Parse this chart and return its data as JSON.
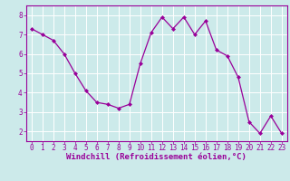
{
  "x": [
    0,
    1,
    2,
    3,
    4,
    5,
    6,
    7,
    8,
    9,
    10,
    11,
    12,
    13,
    14,
    15,
    16,
    17,
    18,
    19,
    20,
    21,
    22,
    23
  ],
  "y": [
    7.3,
    7.0,
    6.7,
    6.0,
    5.0,
    4.1,
    3.5,
    3.4,
    3.2,
    3.4,
    5.5,
    7.1,
    7.9,
    7.3,
    7.9,
    7.0,
    7.7,
    6.2,
    5.9,
    4.8,
    2.5,
    1.9,
    2.8,
    1.9
  ],
  "line_color": "#990099",
  "marker": "D",
  "markersize": 2.0,
  "linewidth": 0.9,
  "xlabel": "Windchill (Refroidissement éolien,°C)",
  "xlabel_fontsize": 6.5,
  "xtick_labels": [
    "0",
    "1",
    "2",
    "3",
    "4",
    "5",
    "6",
    "7",
    "8",
    "9",
    "10",
    "11",
    "12",
    "13",
    "14",
    "15",
    "16",
    "17",
    "18",
    "19",
    "20",
    "21",
    "22",
    "23"
  ],
  "ytick_values": [
    2,
    3,
    4,
    5,
    6,
    7,
    8
  ],
  "ylim": [
    1.5,
    8.5
  ],
  "xlim": [
    -0.5,
    23.5
  ],
  "bg_color": "#cceaea",
  "grid_color": "#ffffff",
  "tick_fontsize": 5.5,
  "spine_color": "#990099"
}
